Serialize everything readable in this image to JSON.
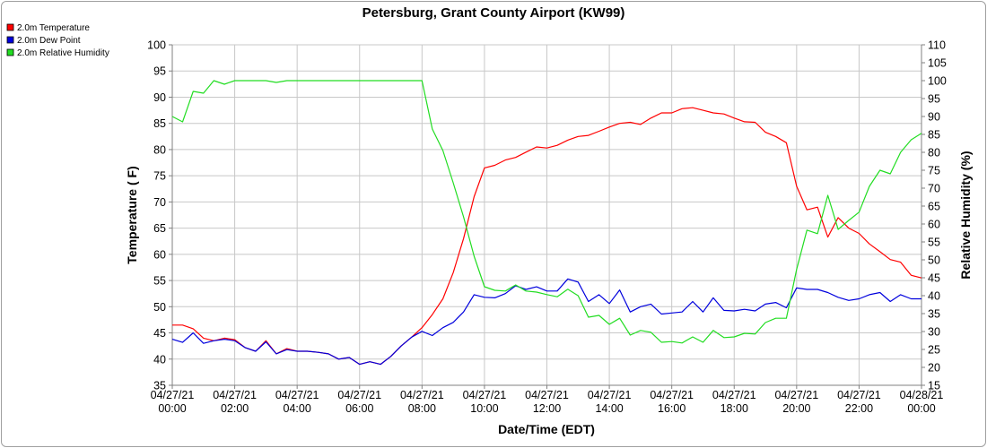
{
  "chart_data": {
    "type": "line",
    "title": "Petersburg, Grant County Airport (KW99)",
    "xlabel": "Date/Time (EDT)",
    "ylabel_left": "Temperature ( F)",
    "ylabel_right": "Relative Humidity (%)",
    "ylim_left": [
      35,
      100
    ],
    "ylim_right": [
      15,
      110
    ],
    "xlim_hours": [
      0,
      24
    ],
    "grid": true,
    "legend_position": "top-left",
    "x_tick_labels": [
      [
        "04/27/21",
        "00:00"
      ],
      [
        "04/27/21",
        "02:00"
      ],
      [
        "04/27/21",
        "04:00"
      ],
      [
        "04/27/21",
        "06:00"
      ],
      [
        "04/27/21",
        "08:00"
      ],
      [
        "04/27/21",
        "10:00"
      ],
      [
        "04/27/21",
        "12:00"
      ],
      [
        "04/27/21",
        "14:00"
      ],
      [
        "04/27/21",
        "16:00"
      ],
      [
        "04/27/21",
        "18:00"
      ],
      [
        "04/27/21",
        "20:00"
      ],
      [
        "04/27/21",
        "22:00"
      ],
      [
        "04/28/21",
        "00:00"
      ]
    ],
    "y_ticks_left": [
      "35",
      "40",
      "45",
      "50",
      "55",
      "60",
      "65",
      "70",
      "75",
      "80",
      "85",
      "90",
      "95",
      "100"
    ],
    "y_ticks_right": [
      "15",
      "20",
      "25",
      "30",
      "35",
      "40",
      "45",
      "50",
      "55",
      "60",
      "65",
      "70",
      "75",
      "80",
      "85",
      "90",
      "95",
      "100",
      "105",
      "110"
    ],
    "series": [
      {
        "name": "2.0m Temperature",
        "color": "#ff0000",
        "axis": "left",
        "points": [
          [
            0.0,
            46.5
          ],
          [
            0.33,
            46.5
          ],
          [
            0.67,
            45.8
          ],
          [
            1.0,
            44.0
          ],
          [
            1.33,
            43.5
          ],
          [
            1.67,
            44.0
          ],
          [
            2.0,
            43.7
          ],
          [
            2.33,
            42.2
          ],
          [
            2.67,
            41.5
          ],
          [
            3.0,
            43.5
          ],
          [
            3.33,
            41.0
          ],
          [
            3.67,
            42.0
          ],
          [
            4.0,
            41.5
          ],
          [
            4.33,
            41.5
          ],
          [
            4.67,
            41.3
          ],
          [
            5.0,
            41.0
          ],
          [
            5.33,
            40.0
          ],
          [
            5.67,
            40.3
          ],
          [
            6.0,
            39.0
          ],
          [
            6.33,
            39.5
          ],
          [
            6.67,
            39.0
          ],
          [
            7.0,
            40.5
          ],
          [
            7.33,
            42.5
          ],
          [
            7.67,
            44.2
          ],
          [
            8.0,
            46.0
          ],
          [
            8.33,
            48.5
          ],
          [
            8.67,
            51.5
          ],
          [
            9.0,
            56.5
          ],
          [
            9.33,
            63.0
          ],
          [
            9.67,
            71.0
          ],
          [
            10.0,
            76.5
          ],
          [
            10.33,
            77.0
          ],
          [
            10.67,
            78.0
          ],
          [
            11.0,
            78.5
          ],
          [
            11.33,
            79.5
          ],
          [
            11.67,
            80.5
          ],
          [
            12.0,
            80.3
          ],
          [
            12.33,
            80.8
          ],
          [
            12.67,
            81.8
          ],
          [
            13.0,
            82.5
          ],
          [
            13.33,
            82.7
          ],
          [
            13.67,
            83.5
          ],
          [
            14.0,
            84.3
          ],
          [
            14.33,
            85.0
          ],
          [
            14.67,
            85.2
          ],
          [
            15.0,
            84.8
          ],
          [
            15.33,
            86.0
          ],
          [
            15.67,
            87.0
          ],
          [
            16.0,
            87.0
          ],
          [
            16.33,
            87.8
          ],
          [
            16.67,
            88.0
          ],
          [
            17.0,
            87.5
          ],
          [
            17.33,
            87.0
          ],
          [
            17.67,
            86.8
          ],
          [
            18.0,
            86.0
          ],
          [
            18.33,
            85.3
          ],
          [
            18.67,
            85.2
          ],
          [
            19.0,
            83.3
          ],
          [
            19.33,
            82.5
          ],
          [
            19.67,
            81.3
          ],
          [
            20.0,
            73.0
          ],
          [
            20.33,
            68.5
          ],
          [
            20.67,
            69.0
          ],
          [
            21.0,
            63.3
          ],
          [
            21.33,
            67.0
          ],
          [
            21.67,
            65.0
          ],
          [
            22.0,
            64.0
          ],
          [
            22.33,
            62.0
          ],
          [
            22.67,
            60.5
          ],
          [
            23.0,
            59.0
          ],
          [
            23.33,
            58.5
          ],
          [
            23.67,
            56.0
          ],
          [
            24.0,
            55.5
          ]
        ]
      },
      {
        "name": "2.0m Dew Point",
        "color": "#0000dd",
        "axis": "left",
        "points": [
          [
            0.0,
            43.8
          ],
          [
            0.33,
            43.2
          ],
          [
            0.67,
            45.0
          ],
          [
            1.0,
            43.0
          ],
          [
            1.33,
            43.5
          ],
          [
            1.67,
            43.8
          ],
          [
            2.0,
            43.5
          ],
          [
            2.33,
            42.2
          ],
          [
            2.67,
            41.5
          ],
          [
            3.0,
            43.3
          ],
          [
            3.33,
            41.0
          ],
          [
            3.67,
            41.8
          ],
          [
            4.0,
            41.5
          ],
          [
            4.33,
            41.5
          ],
          [
            4.67,
            41.3
          ],
          [
            5.0,
            41.0
          ],
          [
            5.33,
            40.0
          ],
          [
            5.67,
            40.3
          ],
          [
            6.0,
            39.0
          ],
          [
            6.33,
            39.5
          ],
          [
            6.67,
            39.0
          ],
          [
            7.0,
            40.5
          ],
          [
            7.33,
            42.5
          ],
          [
            7.67,
            44.2
          ],
          [
            8.0,
            45.3
          ],
          [
            8.33,
            44.5
          ],
          [
            8.67,
            46.0
          ],
          [
            9.0,
            47.0
          ],
          [
            9.33,
            49.0
          ],
          [
            9.67,
            52.3
          ],
          [
            10.0,
            51.8
          ],
          [
            10.33,
            51.7
          ],
          [
            10.67,
            52.5
          ],
          [
            11.0,
            54.0
          ],
          [
            11.33,
            53.3
          ],
          [
            11.67,
            53.8
          ],
          [
            12.0,
            53.0
          ],
          [
            12.33,
            53.0
          ],
          [
            12.67,
            55.3
          ],
          [
            13.0,
            54.7
          ],
          [
            13.33,
            51.0
          ],
          [
            13.67,
            52.3
          ],
          [
            14.0,
            50.6
          ],
          [
            14.33,
            53.2
          ],
          [
            14.67,
            49.0
          ],
          [
            15.0,
            50.0
          ],
          [
            15.33,
            50.5
          ],
          [
            15.67,
            48.6
          ],
          [
            16.0,
            48.8
          ],
          [
            16.33,
            49.0
          ],
          [
            16.67,
            51.0
          ],
          [
            17.0,
            49.0
          ],
          [
            17.33,
            51.7
          ],
          [
            17.67,
            49.3
          ],
          [
            18.0,
            49.2
          ],
          [
            18.33,
            49.5
          ],
          [
            18.67,
            49.2
          ],
          [
            19.0,
            50.5
          ],
          [
            19.33,
            50.8
          ],
          [
            19.67,
            49.8
          ],
          [
            20.0,
            53.6
          ],
          [
            20.33,
            53.3
          ],
          [
            20.67,
            53.3
          ],
          [
            21.0,
            52.7
          ],
          [
            21.33,
            51.8
          ],
          [
            21.67,
            51.2
          ],
          [
            22.0,
            51.5
          ],
          [
            22.33,
            52.3
          ],
          [
            22.67,
            52.7
          ],
          [
            23.0,
            51.0
          ],
          [
            23.33,
            52.3
          ],
          [
            23.67,
            51.5
          ],
          [
            24.0,
            51.5
          ]
        ]
      },
      {
        "name": "2.0m Relative Humidity",
        "color": "#22dd22",
        "axis": "right",
        "points": [
          [
            0.0,
            90
          ],
          [
            0.33,
            88.5
          ],
          [
            0.67,
            97
          ],
          [
            1.0,
            96.5
          ],
          [
            1.33,
            100
          ],
          [
            1.67,
            99
          ],
          [
            2.0,
            100
          ],
          [
            2.33,
            100
          ],
          [
            2.67,
            100
          ],
          [
            3.0,
            100
          ],
          [
            3.33,
            99.5
          ],
          [
            3.67,
            100
          ],
          [
            4.0,
            100
          ],
          [
            4.67,
            100
          ],
          [
            5.33,
            100
          ],
          [
            6.0,
            100
          ],
          [
            6.67,
            100
          ],
          [
            7.33,
            100
          ],
          [
            7.67,
            100
          ],
          [
            8.0,
            100
          ],
          [
            8.33,
            86.5
          ],
          [
            8.67,
            80.5
          ],
          [
            9.0,
            71.5
          ],
          [
            9.33,
            62
          ],
          [
            9.67,
            51
          ],
          [
            10.0,
            42.5
          ],
          [
            10.33,
            41.5
          ],
          [
            10.67,
            41.3
          ],
          [
            11.0,
            43
          ],
          [
            11.33,
            41.3
          ],
          [
            11.67,
            41
          ],
          [
            12.0,
            40.3
          ],
          [
            12.33,
            39.7
          ],
          [
            12.67,
            41.8
          ],
          [
            13.0,
            40
          ],
          [
            13.33,
            34
          ],
          [
            13.67,
            34.5
          ],
          [
            14.0,
            32
          ],
          [
            14.33,
            33.7
          ],
          [
            14.67,
            29
          ],
          [
            15.0,
            30.3
          ],
          [
            15.33,
            29.8
          ],
          [
            15.67,
            27
          ],
          [
            16.0,
            27.2
          ],
          [
            16.33,
            26.8
          ],
          [
            16.67,
            28.5
          ],
          [
            17.0,
            27
          ],
          [
            17.33,
            30.3
          ],
          [
            17.67,
            28.3
          ],
          [
            18.0,
            28.5
          ],
          [
            18.33,
            29.5
          ],
          [
            18.67,
            29.3
          ],
          [
            19.0,
            32.5
          ],
          [
            19.33,
            33.7
          ],
          [
            19.67,
            33.7
          ],
          [
            20.0,
            47.3
          ],
          [
            20.33,
            58.3
          ],
          [
            20.67,
            57.3
          ],
          [
            21.0,
            68
          ],
          [
            21.33,
            58.5
          ],
          [
            21.67,
            61
          ],
          [
            22.0,
            63.3
          ],
          [
            22.33,
            70.5
          ],
          [
            22.67,
            75
          ],
          [
            23.0,
            74
          ],
          [
            23.33,
            80
          ],
          [
            23.67,
            83.5
          ],
          [
            24.0,
            85.3
          ]
        ]
      }
    ]
  }
}
